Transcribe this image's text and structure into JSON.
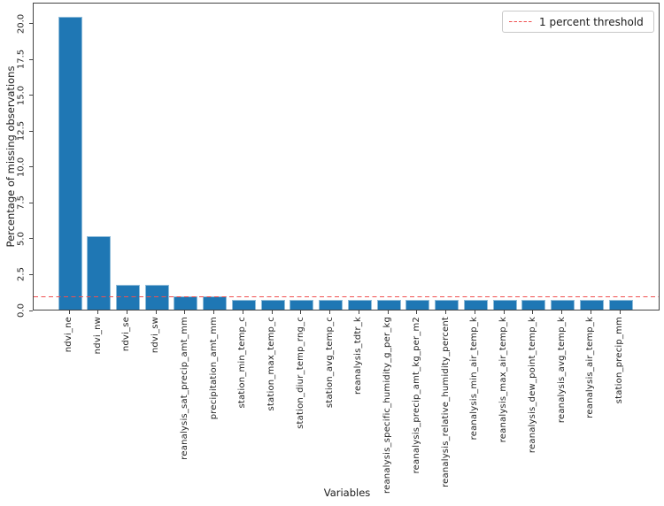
{
  "chart_data": {
    "type": "bar",
    "title": "",
    "xlabel": "Variables",
    "ylabel": "Percentage of missing observations",
    "categories": [
      "ndvi_ne",
      "ndvi_nw",
      "ndvi_se",
      "ndvi_sw",
      "reanalysis_sat_precip_amt_mm",
      "precipitation_amt_mm",
      "station_min_temp_c",
      "station_max_temp_c",
      "station_diur_temp_rng_c",
      "station_avg_temp_c",
      "reanalysis_tdtr_k",
      "reanalysis_specific_humidity_g_per_kg",
      "reanalysis_precip_amt_kg_per_m2",
      "reanalysis_relative_humidity_percent",
      "reanalysis_min_air_temp_k",
      "reanalysis_max_air_temp_k",
      "reanalysis_dew_point_temp_k",
      "reanalysis_avg_temp_k",
      "reanalysis_air_temp_k",
      "station_precip_mm"
    ],
    "values": [
      20.4,
      5.1,
      1.7,
      1.7,
      0.9,
      0.9,
      0.7,
      0.7,
      0.7,
      0.7,
      0.7,
      0.7,
      0.7,
      0.7,
      0.7,
      0.7,
      0.7,
      0.7,
      0.7,
      0.7
    ],
    "bar_color": "#1f77b4",
    "ylim": [
      0,
      21.45
    ],
    "yticks": [
      0.0,
      2.5,
      5.0,
      7.5,
      10.0,
      12.5,
      15.0,
      17.5,
      20.0
    ],
    "ytick_labels": [
      "0.0",
      "2.5",
      "5.0",
      "7.5",
      "10.0",
      "12.5",
      "15.0",
      "17.5",
      "20.0"
    ],
    "grid": false,
    "threshold_line": {
      "value": 1.0,
      "color": "#f05050",
      "style": "dashed"
    },
    "legend": {
      "position": "upper right",
      "entries": [
        {
          "label": "1 percent threshold",
          "marker": "red-dashed-line"
        }
      ]
    }
  }
}
